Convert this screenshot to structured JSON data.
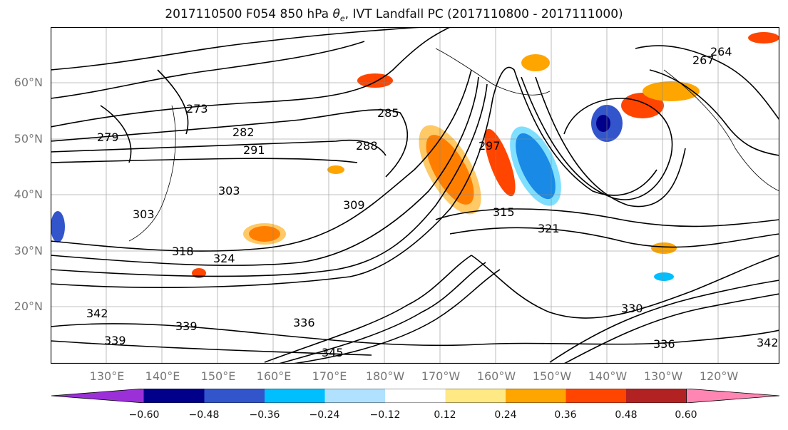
{
  "title_parts": {
    "prefix": "2017110500 F054 850 hPa ",
    "theta": "θ",
    "sub": "e",
    "suffix": ", IVT Landfall PC (2017110800 - 2017111000)"
  },
  "map": {
    "lat_labels": [
      "60°N",
      "50°N",
      "40°N",
      "30°N",
      "20°N"
    ],
    "lon_labels": [
      "130°E",
      "140°E",
      "150°E",
      "160°E",
      "170°E",
      "180°W",
      "170°W",
      "160°W",
      "150°W",
      "140°W",
      "130°W",
      "120°W"
    ],
    "contour_labels": [
      "264",
      "267",
      "273",
      "279",
      "282",
      "285",
      "288",
      "291",
      "297",
      "303",
      "309",
      "315",
      "318",
      "321",
      "324",
      "330",
      "336",
      "339",
      "342",
      "345"
    ]
  },
  "colorbar": {
    "ticks": [
      "−0.60",
      "−0.48",
      "−0.36",
      "−0.24",
      "−0.12",
      "0.12",
      "0.24",
      "0.36",
      "0.48",
      "0.60"
    ],
    "colors": [
      "#9b30d9",
      "#00008b",
      "#3355cc",
      "#00bfff",
      "#b0e2ff",
      "#ffffff",
      "#ffe985",
      "#ffa500",
      "#ff4500",
      "#b22222",
      "#ff85b3"
    ]
  }
}
